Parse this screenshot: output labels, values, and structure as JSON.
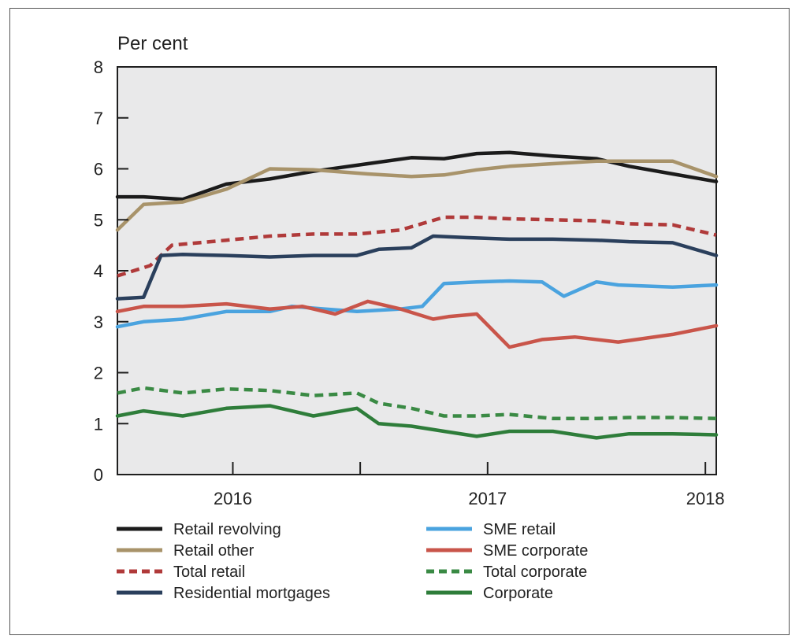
{
  "chart_data": {
    "type": "line",
    "ylabel": "Per cent",
    "ylim": [
      0,
      8
    ],
    "yticks": [
      0,
      1,
      2,
      3,
      4,
      5,
      6,
      7,
      8
    ],
    "x_range": [
      2015.3,
      2018.05
    ],
    "xticks": [
      {
        "label": "2016",
        "value": 2015.83
      },
      {
        "label": "2017",
        "value": 2017.0
      },
      {
        "label": "2018",
        "value": 2018.0
      }
    ],
    "grid": false,
    "legend_position": "bottom",
    "series": [
      {
        "name": "Retail revolving",
        "color": "#1b1b1b",
        "style": "solid",
        "x": [
          2015.3,
          2015.42,
          2015.6,
          2015.8,
          2016.0,
          2016.2,
          2016.45,
          2016.65,
          2016.8,
          2016.95,
          2017.1,
          2017.3,
          2017.5,
          2017.65,
          2017.85,
          2018.05
        ],
        "y": [
          5.45,
          5.45,
          5.4,
          5.7,
          5.8,
          5.95,
          6.1,
          6.22,
          6.2,
          6.3,
          6.32,
          6.25,
          6.2,
          6.05,
          5.9,
          5.75
        ]
      },
      {
        "name": "Retail other",
        "color": "#a8936a",
        "style": "solid",
        "x": [
          2015.3,
          2015.42,
          2015.6,
          2015.8,
          2016.0,
          2016.2,
          2016.45,
          2016.65,
          2016.8,
          2016.95,
          2017.1,
          2017.3,
          2017.5,
          2017.65,
          2017.85,
          2018.05
        ],
        "y": [
          4.8,
          5.3,
          5.35,
          5.6,
          6.0,
          5.98,
          5.9,
          5.85,
          5.88,
          5.98,
          6.05,
          6.1,
          6.15,
          6.15,
          6.15,
          5.85
        ]
      },
      {
        "name": "Total retail",
        "color": "#b03a3a",
        "style": "dashed",
        "x": [
          2015.3,
          2015.45,
          2015.55,
          2015.8,
          2016.0,
          2016.2,
          2016.4,
          2016.6,
          2016.8,
          2016.95,
          2017.1,
          2017.3,
          2017.5,
          2017.65,
          2017.85,
          2018.05
        ],
        "y": [
          3.9,
          4.1,
          4.5,
          4.6,
          4.68,
          4.72,
          4.72,
          4.8,
          5.05,
          5.05,
          5.02,
          5.0,
          4.98,
          4.92,
          4.9,
          4.7
        ]
      },
      {
        "name": "Residential mortgages",
        "color": "#2a3f5c",
        "style": "solid",
        "x": [
          2015.3,
          2015.42,
          2015.5,
          2015.6,
          2015.8,
          2016.0,
          2016.2,
          2016.4,
          2016.5,
          2016.65,
          2016.75,
          2016.9,
          2017.1,
          2017.3,
          2017.5,
          2017.65,
          2017.85,
          2018.05
        ],
        "y": [
          3.45,
          3.48,
          4.3,
          4.32,
          4.3,
          4.27,
          4.3,
          4.3,
          4.42,
          4.45,
          4.68,
          4.65,
          4.62,
          4.62,
          4.6,
          4.57,
          4.55,
          4.3
        ]
      },
      {
        "name": "SME retail",
        "color": "#4aa3df",
        "style": "solid",
        "x": [
          2015.3,
          2015.42,
          2015.6,
          2015.8,
          2016.0,
          2016.1,
          2016.25,
          2016.4,
          2016.6,
          2016.7,
          2016.8,
          2016.95,
          2017.1,
          2017.25,
          2017.35,
          2017.5,
          2017.6,
          2017.85,
          2018.05
        ],
        "y": [
          2.9,
          3.0,
          3.05,
          3.2,
          3.2,
          3.3,
          3.25,
          3.2,
          3.25,
          3.3,
          3.75,
          3.78,
          3.8,
          3.78,
          3.5,
          3.78,
          3.72,
          3.68,
          3.72
        ]
      },
      {
        "name": "SME corporate",
        "color": "#c9554a",
        "style": "solid",
        "x": [
          2015.3,
          2015.42,
          2015.6,
          2015.8,
          2016.0,
          2016.15,
          2016.3,
          2016.45,
          2016.6,
          2016.75,
          2016.82,
          2016.95,
          2017.1,
          2017.25,
          2017.4,
          2017.6,
          2017.85,
          2018.05
        ],
        "y": [
          3.2,
          3.3,
          3.3,
          3.35,
          3.25,
          3.3,
          3.15,
          3.4,
          3.25,
          3.05,
          3.1,
          3.15,
          2.5,
          2.65,
          2.7,
          2.6,
          2.75,
          2.92
        ]
      },
      {
        "name": "Total corporate",
        "color": "#3a8a44",
        "style": "dashed",
        "x": [
          2015.3,
          2015.42,
          2015.6,
          2015.8,
          2016.0,
          2016.2,
          2016.4,
          2016.5,
          2016.65,
          2016.8,
          2016.95,
          2017.1,
          2017.3,
          2017.5,
          2017.65,
          2017.85,
          2018.05
        ],
        "y": [
          1.6,
          1.7,
          1.6,
          1.68,
          1.65,
          1.55,
          1.6,
          1.4,
          1.3,
          1.15,
          1.15,
          1.18,
          1.1,
          1.1,
          1.12,
          1.12,
          1.1
        ]
      },
      {
        "name": "Corporate",
        "color": "#2e7d3a",
        "style": "solid",
        "x": [
          2015.3,
          2015.42,
          2015.6,
          2015.8,
          2016.0,
          2016.2,
          2016.4,
          2016.5,
          2016.65,
          2016.8,
          2016.95,
          2017.1,
          2017.3,
          2017.5,
          2017.65,
          2017.85,
          2018.05
        ],
        "y": [
          1.15,
          1.25,
          1.15,
          1.3,
          1.35,
          1.15,
          1.3,
          1.0,
          0.95,
          0.85,
          0.75,
          0.85,
          0.85,
          0.72,
          0.8,
          0.8,
          0.78
        ]
      }
    ],
    "legend": [
      {
        "label": "Retail revolving",
        "color": "#1b1b1b",
        "style": "solid"
      },
      {
        "label": "Retail other",
        "color": "#a8936a",
        "style": "solid"
      },
      {
        "label": "Total retail",
        "color": "#b03a3a",
        "style": "dashed"
      },
      {
        "label": "Residential mortgages",
        "color": "#2a3f5c",
        "style": "solid"
      },
      {
        "label": "SME retail",
        "color": "#4aa3df",
        "style": "solid"
      },
      {
        "label": "SME corporate",
        "color": "#c9554a",
        "style": "solid"
      },
      {
        "label": "Total corporate",
        "color": "#3a8a44",
        "style": "dashed"
      },
      {
        "label": "Corporate",
        "color": "#2e7d3a",
        "style": "solid"
      }
    ]
  },
  "colors": {
    "plot_background": "#e9e9ea",
    "axis": "#1f1f1f"
  }
}
